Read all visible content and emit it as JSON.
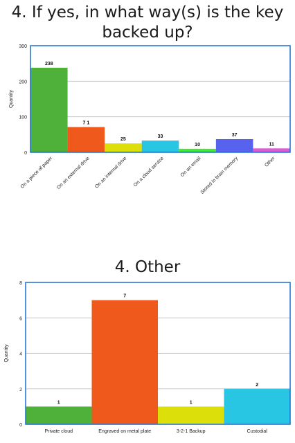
{
  "chart_data": [
    {
      "type": "bar",
      "title": "4. If yes, in what way(s) is the key backed up?",
      "xlabel": "",
      "ylabel": "Quantity",
      "ylim": [
        0,
        300
      ],
      "yticks": [
        0,
        100,
        200,
        300
      ],
      "grid": true,
      "categories": [
        "On a piece of paper",
        "On an external drive",
        "On an internal drive",
        "On a cloud service",
        "On an email",
        "Stored in brain memory",
        "Other"
      ],
      "values": [
        238,
        71,
        25,
        33,
        10,
        37,
        11
      ],
      "value_labels": [
        "238",
        "7 1",
        "25",
        "33",
        "10",
        "37",
        "11"
      ],
      "colors": [
        "#4fb03a",
        "#ef5a1c",
        "#dcdf0a",
        "#28c6e2",
        "#43e83a",
        "#5762ef",
        "#d65ed6"
      ],
      "frame_color": "#1a6fd1",
      "tick_label_rotation": "rotated"
    },
    {
      "type": "bar",
      "title": "4. Other",
      "xlabel": "",
      "ylabel": "Quantity",
      "ylim": [
        0,
        8
      ],
      "yticks": [
        0,
        2,
        4,
        6,
        8
      ],
      "grid": true,
      "categories": [
        "Private cloud",
        "Engraved on metal plate",
        "3-2-1 Backup",
        "Custodial"
      ],
      "values": [
        1,
        7,
        1,
        2
      ],
      "value_labels": [
        "1",
        "7",
        "1",
        "2"
      ],
      "colors": [
        "#4fb03a",
        "#ef5a1c",
        "#dcdf0a",
        "#28c6e2"
      ],
      "frame_color": "#1a6fd1",
      "tick_label_rotation": "horizontal"
    }
  ]
}
